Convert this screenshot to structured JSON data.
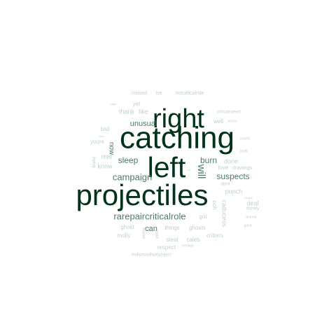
{
  "words": [
    {
      "text": "right",
      "weight": 1.0,
      "rotate": false,
      "tone": "dark"
    },
    {
      "text": "catching",
      "weight": 1.0,
      "rotate": false,
      "tone": "dark"
    },
    {
      "text": "left",
      "weight": 1.0,
      "rotate": false,
      "tone": "dark"
    },
    {
      "text": "projectiles",
      "weight": 1.0,
      "rotate": false,
      "tone": "dark"
    },
    {
      "text": "rarepaircriticalrole",
      "weight": 0.3,
      "rotate": false,
      "tone": "mid"
    },
    {
      "text": "campaign",
      "weight": 0.3,
      "rotate": false,
      "tone": "mid"
    },
    {
      "text": "sleep",
      "weight": 0.3,
      "rotate": false,
      "tone": "mid"
    },
    {
      "text": "burn",
      "weight": 0.3,
      "rotate": false,
      "tone": "mid"
    },
    {
      "text": "suspects",
      "weight": 0.25,
      "rotate": false,
      "tone": "mid"
    },
    {
      "text": "unusual",
      "weight": 0.22,
      "rotate": false,
      "tone": "mid"
    },
    {
      "text": "will",
      "weight": 0.25,
      "rotate": true,
      "tone": "mid"
    },
    {
      "text": "now",
      "weight": 0.2,
      "rotate": true,
      "tone": "mid"
    },
    {
      "text": "can",
      "weight": 0.2,
      "rotate": false,
      "tone": "mid"
    },
    {
      "text": "punch",
      "weight": 0.2,
      "rotate": false,
      "tone": "light"
    },
    {
      "text": "love",
      "weight": 0.18,
      "rotate": false,
      "tone": "light"
    },
    {
      "text": "drawings",
      "weight": 0.15,
      "rotate": false,
      "tone": "light"
    },
    {
      "text": "real",
      "weight": 0.18,
      "rotate": false,
      "tone": "light"
    },
    {
      "text": "know",
      "weight": 0.17,
      "rotate": false,
      "tone": "light"
    },
    {
      "text": "thank",
      "weight": 0.17,
      "rotate": false,
      "tone": "light"
    },
    {
      "text": "like",
      "weight": 0.17,
      "rotate": false,
      "tone": "light"
    },
    {
      "text": "yet",
      "weight": 0.15,
      "rotate": false,
      "tone": "light"
    },
    {
      "text": "missed",
      "weight": 0.15,
      "rotate": false,
      "tone": "light"
    },
    {
      "text": "ive",
      "weight": 0.15,
      "rotate": false,
      "tone": "light"
    },
    {
      "text": "notcriticalrole",
      "weight": 0.12,
      "rotate": false,
      "tone": "light"
    },
    {
      "text": "criticalroleart",
      "weight": 0.12,
      "rotate": false,
      "tone": "light"
    },
    {
      "text": "well",
      "weight": 0.15,
      "rotate": false,
      "tone": "light"
    },
    {
      "text": "know",
      "weight": 0.1,
      "rotate": false,
      "tone": "light"
    },
    {
      "text": "bad",
      "weight": 0.15,
      "rotate": false,
      "tone": "light"
    },
    {
      "text": "youre",
      "weight": 0.15,
      "rotate": false,
      "tone": "light"
    },
    {
      "text": "laptop",
      "weight": 0.12,
      "rotate": true,
      "tone": "light"
    },
    {
      "text": "done",
      "weight": 0.17,
      "rotate": false,
      "tone": "light"
    },
    {
      "text": "didnt",
      "weight": 0.12,
      "rotate": false,
      "tone": "light"
    },
    {
      "text": "look",
      "weight": 0.1,
      "rotate": false,
      "tone": "light"
    },
    {
      "text": "charity",
      "weight": 0.08,
      "rotate": false,
      "tone": "light"
    },
    {
      "text": "deal",
      "weight": 0.17,
      "rotate": false,
      "tone": "light"
    },
    {
      "text": "money",
      "weight": 0.12,
      "rotate": false,
      "tone": "light"
    },
    {
      "text": "journal",
      "weight": 0.1,
      "rotate": false,
      "tone": "light"
    },
    {
      "text": "good",
      "weight": 0.1,
      "rotate": false,
      "tone": "light"
    },
    {
      "text": "couple",
      "weight": 0.08,
      "rotate": false,
      "tone": "light"
    },
    {
      "text": "caduceus",
      "weight": 0.17,
      "rotate": true,
      "tone": "light"
    },
    {
      "text": "ooh",
      "weight": 0.15,
      "rotate": true,
      "tone": "light"
    },
    {
      "text": "got",
      "weight": 0.17,
      "rotate": false,
      "tone": "light"
    },
    {
      "text": "ghost",
      "weight": 0.15,
      "rotate": false,
      "tone": "light"
    },
    {
      "text": "things",
      "weight": 0.17,
      "rotate": false,
      "tone": "light"
    },
    {
      "text": "ghosts",
      "weight": 0.17,
      "rotate": false,
      "tone": "light"
    },
    {
      "text": "molly",
      "weight": 0.15,
      "rotate": false,
      "tone": "light"
    },
    {
      "text": "easier",
      "weight": 0.1,
      "rotate": true,
      "tone": "light"
    },
    {
      "text": "paid",
      "weight": 0.12,
      "rotate": true,
      "tone": "light"
    },
    {
      "text": "steal",
      "weight": 0.15,
      "rotate": false,
      "tone": "light"
    },
    {
      "text": "caleb",
      "weight": 0.15,
      "rotate": false,
      "tone": "light"
    },
    {
      "text": "critters",
      "weight": 0.15,
      "rotate": false,
      "tone": "light"
    },
    {
      "text": "respect",
      "weight": 0.15,
      "rotate": false,
      "tone": "light"
    },
    {
      "text": "mention",
      "weight": 0.08,
      "rotate": false,
      "tone": "light"
    },
    {
      "text": "mollymouthpinproject",
      "weight": 0.12,
      "rotate": false,
      "tone": "light"
    },
    {
      "text": "shes",
      "weight": 0.06,
      "rotate": false,
      "tone": "light"
    },
    {
      "text": "here",
      "weight": 0.06,
      "rotate": false,
      "tone": "light"
    },
    {
      "text": "cc",
      "weight": 0.06,
      "rotate": false,
      "tone": "light"
    }
  ],
  "colors": {
    "dark": "#003319",
    "mid": "#4f7a66",
    "light": "#bfd3c9"
  }
}
